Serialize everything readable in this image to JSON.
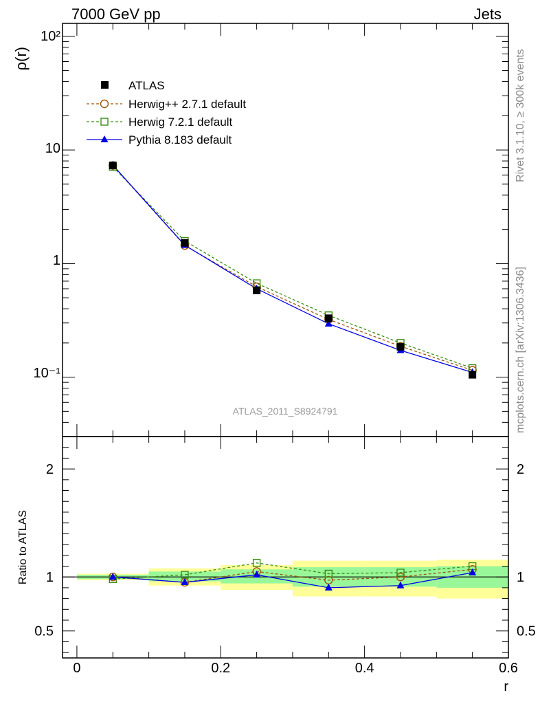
{
  "header": {
    "left": "7000 GeV pp",
    "right": "Jets"
  },
  "side_labels": {
    "top": "Rivet 3.1.10, ≥ 300k events",
    "bottom": "mcplots.cern.ch [arXiv:1306.3436]"
  },
  "watermark": "ATLAS_2011_S8924791",
  "colors": {
    "atlas": "#000000",
    "herwigpp": "#a0520a",
    "herwig7": "#3a8c14",
    "pythia": "#0000e6",
    "band_inner": "#99f799",
    "band_outer": "#ffff99"
  },
  "chart_data": [
    {
      "type": "line",
      "panel": "main",
      "title": "",
      "xlabel": "",
      "ylabel": "ρ(r)",
      "yscale": "log",
      "xlim": [
        -0.02,
        0.6
      ],
      "ylim": [
        0.03,
        130
      ],
      "x": [
        0.05,
        0.15,
        0.25,
        0.35,
        0.45,
        0.55
      ],
      "ytick_labels": {
        "major": [
          "10⁻¹",
          "1",
          "10",
          "10²"
        ]
      },
      "series": [
        {
          "name": "ATLAS",
          "key": "atlas",
          "marker": "square-filled",
          "values": [
            7.3,
            1.52,
            0.58,
            0.33,
            0.185,
            0.105
          ]
        },
        {
          "name": "Herwig++ 2.7.1 default",
          "key": "herwigpp",
          "marker": "circle-open",
          "values": [
            7.3,
            1.44,
            0.625,
            0.322,
            0.187,
            0.115
          ]
        },
        {
          "name": "Herwig 7.2.1 default",
          "key": "herwig7",
          "marker": "square-open",
          "values": [
            7.1,
            1.58,
            0.67,
            0.35,
            0.2,
            0.12
          ]
        },
        {
          "name": "Pythia 8.183 default",
          "key": "pythia",
          "marker": "triangle-filled",
          "values": [
            7.35,
            1.45,
            0.6,
            0.295,
            0.172,
            0.11
          ]
        }
      ]
    },
    {
      "type": "line",
      "panel": "ratio",
      "title": "",
      "xlabel": "r",
      "ylabel": "Ratio to ATLAS",
      "xlim": [
        -0.02,
        0.6
      ],
      "ylim": [
        0.25,
        2.3
      ],
      "xticks": [
        "0",
        "0.2",
        "0.4",
        "0.6"
      ],
      "yticks": [
        "0.5",
        "1",
        "2"
      ],
      "x": [
        0.05,
        0.15,
        0.25,
        0.35,
        0.45,
        0.55
      ],
      "bands": {
        "edges": [
          0.0,
          0.1,
          0.2,
          0.3,
          0.4,
          0.5,
          0.6
        ],
        "inner_low": [
          0.98,
          0.96,
          0.94,
          0.91,
          0.91,
          0.9
        ],
        "inner_high": [
          1.02,
          1.05,
          1.07,
          1.09,
          1.09,
          1.1
        ],
        "outer_low": [
          0.97,
          0.92,
          0.88,
          0.82,
          0.82,
          0.8
        ],
        "outer_high": [
          1.03,
          1.08,
          1.11,
          1.15,
          1.15,
          1.16
        ]
      },
      "series": [
        {
          "name": "Herwig++ 2.7.1 default",
          "key": "herwigpp",
          "marker": "circle-open",
          "values": [
            1.0,
            0.95,
            1.05,
            0.97,
            1.0,
            1.07
          ]
        },
        {
          "name": "Herwig 7.2.1 default",
          "key": "herwig7",
          "marker": "square-open",
          "values": [
            0.98,
            1.02,
            1.13,
            1.03,
            1.04,
            1.1
          ]
        },
        {
          "name": "Pythia 8.183 default",
          "key": "pythia",
          "marker": "triangle-filled",
          "values": [
            1.0,
            0.95,
            1.02,
            0.9,
            0.92,
            1.04
          ]
        }
      ]
    }
  ]
}
